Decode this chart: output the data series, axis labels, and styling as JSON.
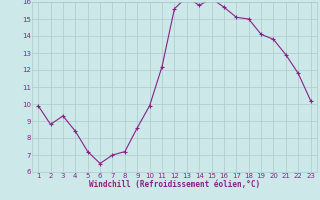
{
  "x": [
    1,
    2,
    3,
    4,
    5,
    6,
    7,
    8,
    9,
    10,
    11,
    12,
    13,
    14,
    15,
    16,
    17,
    18,
    19,
    20,
    21,
    22,
    23
  ],
  "y": [
    9.9,
    8.8,
    9.3,
    8.4,
    7.2,
    6.5,
    7.0,
    7.2,
    8.6,
    9.9,
    12.2,
    15.6,
    16.3,
    15.8,
    16.2,
    15.7,
    15.1,
    15.0,
    14.1,
    13.8,
    12.9,
    11.8,
    10.2
  ],
  "xlim": [
    0.5,
    23.5
  ],
  "ylim": [
    6,
    16
  ],
  "xticks": [
    1,
    2,
    3,
    4,
    5,
    6,
    7,
    8,
    9,
    10,
    11,
    12,
    13,
    14,
    15,
    16,
    17,
    18,
    19,
    20,
    21,
    22,
    23
  ],
  "yticks": [
    6,
    7,
    8,
    9,
    10,
    11,
    12,
    13,
    14,
    15,
    16
  ],
  "xlabel": "Windchill (Refroidissement éolien,°C)",
  "line_color": "#882288",
  "marker": "+",
  "bg_color": "#cce8e8",
  "grid_color": "#aacccc",
  "tick_color": "#882288",
  "label_color": "#882288",
  "tick_fontsize": 5.0,
  "label_fontsize": 5.5,
  "markersize": 3.5,
  "linewidth": 0.8
}
